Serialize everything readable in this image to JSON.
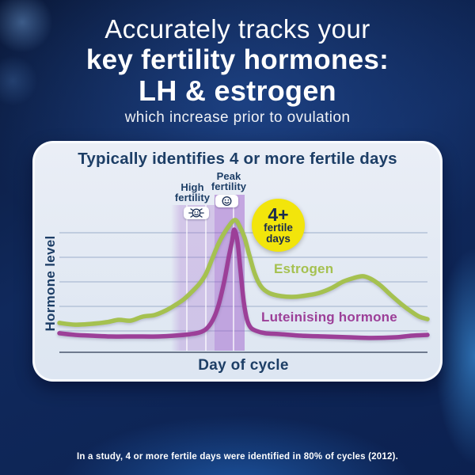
{
  "header": {
    "line1": "Accurately tracks your",
    "line2": "key fertility hormones:",
    "line3": "LH & estrogen",
    "subtitle": "which increase prior to ovulation"
  },
  "card": {
    "title": "Typically identifies 4 or more fertile days",
    "high_fertility": {
      "line1": "High",
      "line2": "fertility"
    },
    "peak_fertility": {
      "line1": "Peak",
      "line2": "fertility"
    },
    "badge": {
      "value": "4+",
      "line2": "fertile",
      "line3": "days"
    },
    "series_labels": {
      "estrogen": "Estrogen",
      "lh": "Luteinising hormone"
    },
    "axes": {
      "y": "Hormone level",
      "x": "Day of cycle"
    }
  },
  "footer": {
    "study_note": "In a study, 4 or more fertile days were identified in 80% of cycles (2012)."
  },
  "icons": {
    "high_fertility": "flashing-smiley-icon",
    "peak_fertility": "static-smiley-icon"
  },
  "colors": {
    "estrogen": "#a5c150",
    "lh": "#9c3f98",
    "badge_bg": "#f2e50b",
    "badge_text": "#1b2c4e",
    "card_title": "#1d3e66",
    "high_band": "rgba(167,112,205,0.30)",
    "peak_band": "rgba(152,82,200,0.45)"
  },
  "chart_data": {
    "type": "line",
    "title": "Typically identifies 4 or more fertile days",
    "xlabel": "Day of cycle",
    "ylabel": "Hormone level",
    "x_units": "percent of cycle (no numeric ticks shown)",
    "xlim": [
      0,
      100
    ],
    "ylim": [
      0,
      100
    ],
    "grid": "horizontal gridlines only (5 lines), no tick labels",
    "legend_position": "inline labels next to curves",
    "series": [
      {
        "name": "Estrogen",
        "color": "#a5c150",
        "x": [
          0,
          4.3,
          8.6,
          12.9,
          16.1,
          19.4,
          22.6,
          25.8,
          29.0,
          31.6,
          33.8,
          36.1,
          38.1,
          39.8,
          41.5,
          43.4,
          45.8,
          47.7,
          49.0,
          50.3,
          51.6,
          53.1,
          54.8,
          57.0,
          60.2,
          63.9,
          67.3,
          70.5,
          73.8,
          77.0,
          80.0,
          82.4,
          84.5,
          87.1,
          89.9,
          92.9,
          95.7,
          97.8,
          100
        ],
        "y": [
          18.6,
          17.5,
          18.0,
          19.1,
          20.6,
          20.1,
          22.7,
          23.7,
          26.8,
          30.4,
          34.0,
          39.2,
          44.3,
          50.5,
          60.3,
          71.1,
          80.9,
          85.6,
          81.4,
          74.2,
          62.9,
          50.5,
          42.3,
          38.1,
          36.1,
          35.6,
          36.6,
          38.1,
          41.2,
          45.4,
          47.9,
          49.0,
          47.4,
          43.3,
          37.1,
          30.9,
          25.8,
          22.7,
          21.1
        ]
      },
      {
        "name": "Luteinising hormone",
        "color": "#9c3f98",
        "x": [
          0,
          4.3,
          8.6,
          14.0,
          20.4,
          26.9,
          31.2,
          35.5,
          38.1,
          40.0,
          41.7,
          43.2,
          44.7,
          46.0,
          46.9,
          47.5,
          48.4,
          49.2,
          50.1,
          51.0,
          52.0,
          53.5,
          55.9,
          60.2,
          65.6,
          72.0,
          78.5,
          84.9,
          91.4,
          95.7,
          100
        ],
        "y": [
          11.9,
          10.8,
          10.3,
          9.8,
          9.8,
          9.8,
          10.3,
          11.3,
          12.4,
          14.9,
          20.6,
          29.9,
          44.8,
          61.3,
          71.6,
          79.4,
          71.1,
          52.6,
          32.0,
          20.6,
          15.5,
          13.4,
          11.9,
          11.3,
          10.3,
          9.8,
          9.3,
          8.8,
          9.3,
          10.3,
          10.8
        ]
      }
    ],
    "regions": [
      {
        "name": "High fertility",
        "x_start": 30.3,
        "x_end": 42.2,
        "style": "light purple columns"
      },
      {
        "name": "Peak fertility",
        "x_start": 42.2,
        "x_end": 50.3,
        "style": "dark purple columns"
      }
    ],
    "annotation": "4+ fertile days"
  }
}
